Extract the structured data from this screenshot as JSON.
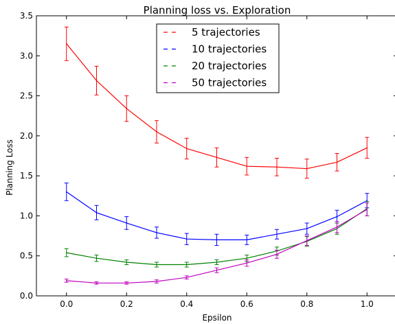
{
  "chart_data": {
    "type": "line",
    "title": "Planning loss vs. Exploration",
    "xlabel": "Epsilon",
    "ylabel": "Planning Loss",
    "xlim": [
      -0.1,
      1.1
    ],
    "ylim": [
      0.0,
      3.5
    ],
    "xticks": [
      "0.0",
      "0.2",
      "0.4",
      "0.6",
      "0.8",
      "1.0"
    ],
    "yticks": [
      "0.0",
      "0.5",
      "1.0",
      "1.5",
      "2.0",
      "2.5",
      "3.0",
      "3.5"
    ],
    "grid": false,
    "legend_position": "top-center",
    "x": [
      0.0,
      0.1,
      0.2,
      0.3,
      0.4,
      0.5,
      0.6,
      0.7,
      0.8,
      0.9,
      1.0
    ],
    "series": [
      {
        "name": "5 trajectories",
        "color": "#ff0000",
        "values": [
          3.15,
          2.69,
          2.34,
          2.05,
          1.84,
          1.73,
          1.62,
          1.61,
          1.59,
          1.67,
          1.85
        ],
        "errors": [
          0.21,
          0.18,
          0.16,
          0.14,
          0.13,
          0.12,
          0.11,
          0.11,
          0.12,
          0.11,
          0.13
        ]
      },
      {
        "name": "10 trajectories",
        "color": "#0000ff",
        "values": [
          1.3,
          1.04,
          0.91,
          0.79,
          0.71,
          0.7,
          0.7,
          0.77,
          0.84,
          0.99,
          1.19
        ],
        "errors": [
          0.11,
          0.09,
          0.08,
          0.07,
          0.07,
          0.07,
          0.06,
          0.06,
          0.07,
          0.08,
          0.09
        ]
      },
      {
        "name": "20 trajectories",
        "color": "#008000",
        "values": [
          0.54,
          0.47,
          0.42,
          0.39,
          0.39,
          0.42,
          0.47,
          0.56,
          0.68,
          0.84,
          1.09
        ],
        "errors": [
          0.05,
          0.04,
          0.03,
          0.03,
          0.03,
          0.03,
          0.04,
          0.05,
          0.06,
          0.07,
          0.09
        ]
      },
      {
        "name": "50 trajectories",
        "color": "#bf00bf",
        "values": [
          0.19,
          0.16,
          0.16,
          0.18,
          0.23,
          0.32,
          0.41,
          0.52,
          0.69,
          0.86,
          1.08
        ],
        "errors": [
          0.02,
          0.015,
          0.015,
          0.02,
          0.02,
          0.03,
          0.04,
          0.05,
          0.06,
          0.07,
          0.08
        ]
      }
    ]
  }
}
